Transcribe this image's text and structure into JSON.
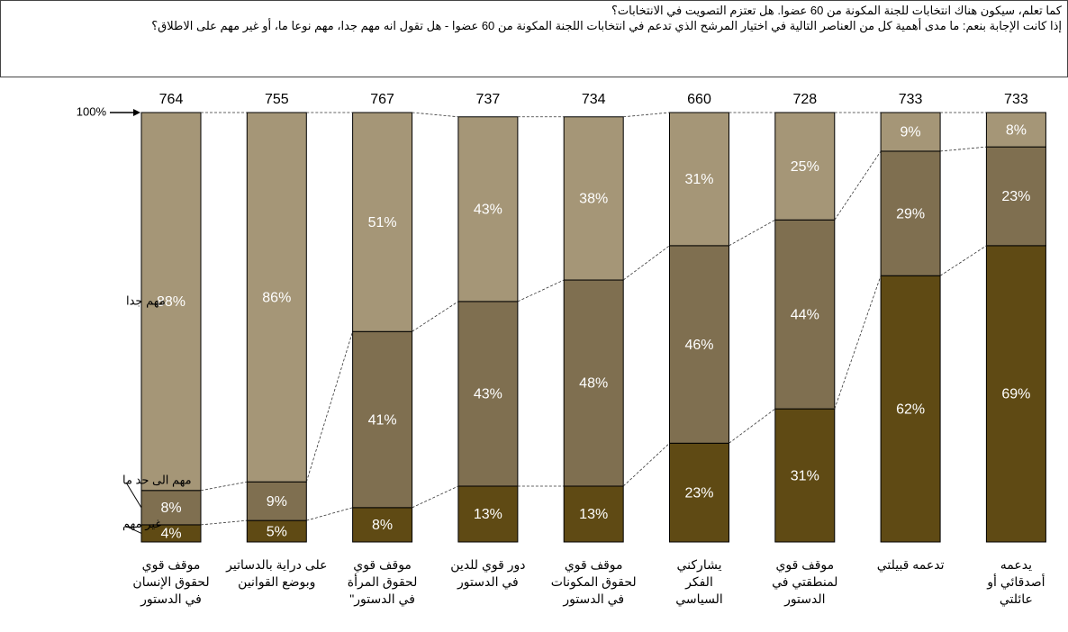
{
  "header": {
    "lines": [
      "كما تعلم، سيكون هناك انتخابات للجنة المكونة من 60 عضوا. هل تعتزم التصويت في الانتخابات؟",
      "إذا كانت الإجابة بنعم: ما مدى أهمية كل من العناصر التالية في اختيار المرشح الذي تدعم في انتخابات اللجنة المكونة من 60 عضوا - هل تقول انه مهم جدا، مهم نوعا ما، أو غير مهم على الاطلاق؟"
    ]
  },
  "chart_data": {
    "type": "stacked-bar",
    "categories": [
      "موقف قوي\nلحقوق الإنسان\nفي الدستور",
      "على دراية بالدساتير\nوبوضع القوانين",
      "موقف قوي\nلحقوق المرأة\nفي الدستور\"",
      "دور قوي للدين\nفي الدستور",
      "موقف قوي\nلحقوق المكونات\nفي الدستور",
      "يشاركني\nالفكر\nالسياسي",
      "موقف قوي\nلمنطقتي في\nالدستور",
      "تدعمه قبيلتي",
      "يدعمه\nأصدقائي أو\nعائلتي"
    ],
    "n": [
      764,
      755,
      767,
      737,
      734,
      660,
      728,
      733,
      733
    ],
    "series": [
      {
        "name": "غير مهم",
        "color": "#5f4a14",
        "values": [
          4,
          5,
          8,
          13,
          13,
          23,
          31,
          62,
          69
        ],
        "value_labels": [
          "4%",
          "5%",
          "8%",
          "13%",
          "13%",
          "23%",
          "31%",
          "62%",
          "69%"
        ]
      },
      {
        "name": "مهم الى حد ما",
        "color": "#7f6f50",
        "values": [
          8,
          9,
          41,
          43,
          48,
          46,
          44,
          29,
          23
        ],
        "value_labels": [
          "8%",
          "9%",
          "41%",
          "43%",
          "48%",
          "46%",
          "44%",
          "29%",
          "23%"
        ]
      },
      {
        "name": "مهم جدا",
        "color": "#a59677",
        "values": [
          88,
          86,
          51,
          43,
          38,
          31,
          25,
          9,
          8
        ],
        "value_labels": [
          "88%",
          "86%",
          "51%",
          "43%",
          "38%",
          "31%",
          "25%",
          "9%",
          "8%"
        ]
      }
    ],
    "ylim": [
      0,
      100
    ],
    "yticks": [
      {
        "value": 100,
        "label": "100%"
      }
    ]
  }
}
